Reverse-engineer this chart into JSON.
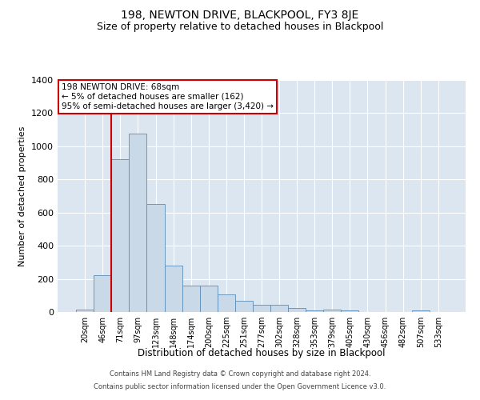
{
  "title": "198, NEWTON DRIVE, BLACKPOOL, FY3 8JE",
  "subtitle": "Size of property relative to detached houses in Blackpool",
  "xlabel": "Distribution of detached houses by size in Blackpool",
  "ylabel": "Number of detached properties",
  "bar_labels": [
    "20sqm",
    "46sqm",
    "71sqm",
    "97sqm",
    "123sqm",
    "148sqm",
    "174sqm",
    "200sqm",
    "225sqm",
    "251sqm",
    "277sqm",
    "302sqm",
    "328sqm",
    "353sqm",
    "379sqm",
    "405sqm",
    "430sqm",
    "456sqm",
    "482sqm",
    "507sqm",
    "533sqm"
  ],
  "bar_values": [
    15,
    222,
    920,
    1075,
    650,
    280,
    158,
    158,
    105,
    70,
    43,
    43,
    22,
    10,
    15,
    10,
    0,
    0,
    0,
    10,
    0
  ],
  "bar_color": "#c9d9e8",
  "bar_edge_color": "#5b8db8",
  "background_color": "#dce6f0",
  "grid_color": "#ffffff",
  "vline_color": "#cc0000",
  "vline_x": 2.0,
  "ylim": [
    0,
    1400
  ],
  "yticks": [
    0,
    200,
    400,
    600,
    800,
    1000,
    1200,
    1400
  ],
  "annotation_text": "198 NEWTON DRIVE: 68sqm\n← 5% of detached houses are smaller (162)\n95% of semi-detached houses are larger (3,420) →",
  "annotation_box_color": "#ffffff",
  "annotation_box_edge": "#cc0000",
  "footer_line1": "Contains HM Land Registry data © Crown copyright and database right 2024.",
  "footer_line2": "Contains public sector information licensed under the Open Government Licence v3.0."
}
